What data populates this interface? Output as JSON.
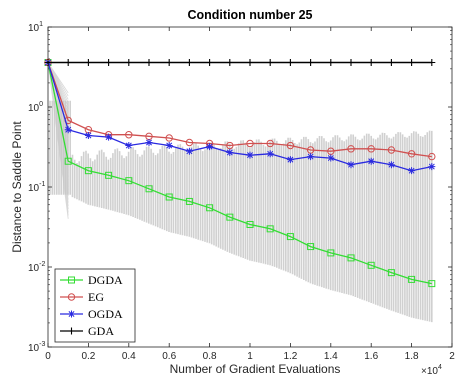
{
  "chart_data": {
    "type": "line",
    "title": "Condition number 25",
    "xlabel": "Number of Gradient Evaluations",
    "ylabel": "Distance to Saddle Point",
    "x_multiplier_label": "×10",
    "x_multiplier_exp": "4",
    "xlim": [
      0,
      2
    ],
    "ylim": [
      0.001,
      10
    ],
    "yscale": "log",
    "x_ticks": [
      0,
      0.2,
      0.4,
      0.6,
      0.8,
      1,
      1.2,
      1.4,
      1.6,
      1.8,
      2
    ],
    "x_tick_labels": [
      "0",
      "0.2",
      "0.4",
      "0.6",
      "0.8",
      "1",
      "1.2",
      "1.4",
      "1.6",
      "1.8",
      "2"
    ],
    "y_ticks": [
      0.001,
      0.01,
      0.1,
      1,
      10
    ],
    "y_tick_labels": [
      {
        "base": "10",
        "exp": "-3"
      },
      {
        "base": "10",
        "exp": "-2"
      },
      {
        "base": "10",
        "exp": "-1"
      },
      {
        "base": "10",
        "exp": "0"
      },
      {
        "base": "10",
        "exp": "1"
      }
    ],
    "grid": false,
    "legend_position": "bottom-left",
    "band_color": "#c8c8c8",
    "series": [
      {
        "name": "DGDA",
        "color": "#33dd33",
        "marker": "square",
        "x": [
          0,
          0.1,
          0.2,
          0.3,
          0.4,
          0.5,
          0.6,
          0.7,
          0.8,
          0.9,
          1.0,
          1.1,
          1.2,
          1.3,
          1.4,
          1.5,
          1.6,
          1.7,
          1.8,
          1.9
        ],
        "y": [
          3.6,
          0.21,
          0.16,
          0.14,
          0.12,
          0.095,
          0.075,
          0.066,
          0.055,
          0.042,
          0.034,
          0.03,
          0.024,
          0.018,
          0.015,
          0.013,
          0.0105,
          0.0085,
          0.007,
          0.0062
        ]
      },
      {
        "name": "EG",
        "color": "#d05050",
        "marker": "circle",
        "x": [
          0,
          0.1,
          0.2,
          0.3,
          0.4,
          0.5,
          0.6,
          0.7,
          0.8,
          0.9,
          1.0,
          1.1,
          1.2,
          1.3,
          1.4,
          1.5,
          1.6,
          1.7,
          1.8,
          1.9
        ],
        "y": [
          3.6,
          0.68,
          0.52,
          0.45,
          0.45,
          0.43,
          0.41,
          0.36,
          0.35,
          0.33,
          0.35,
          0.35,
          0.33,
          0.29,
          0.28,
          0.3,
          0.3,
          0.29,
          0.26,
          0.24
        ]
      },
      {
        "name": "OGDA",
        "color": "#2a2ae0",
        "marker": "star",
        "x": [
          0,
          0.1,
          0.2,
          0.3,
          0.4,
          0.5,
          0.6,
          0.7,
          0.8,
          0.9,
          1.0,
          1.1,
          1.2,
          1.3,
          1.4,
          1.5,
          1.6,
          1.7,
          1.8,
          1.9
        ],
        "y": [
          3.6,
          0.52,
          0.44,
          0.42,
          0.33,
          0.36,
          0.33,
          0.28,
          0.32,
          0.27,
          0.25,
          0.26,
          0.22,
          0.24,
          0.23,
          0.19,
          0.21,
          0.19,
          0.16,
          0.18
        ]
      },
      {
        "name": "GDA",
        "color": "#000000",
        "marker": "plus",
        "x": [
          0,
          0.1,
          0.2,
          0.3,
          0.4,
          0.5,
          0.6,
          0.7,
          0.8,
          0.9,
          1.0,
          1.1,
          1.2,
          1.3,
          1.4,
          1.5,
          1.6,
          1.7,
          1.8,
          1.9
        ],
        "y": [
          3.6,
          3.6,
          3.6,
          3.6,
          3.6,
          3.6,
          3.6,
          3.6,
          3.6,
          3.6,
          3.6,
          3.6,
          3.6,
          3.6,
          3.6,
          3.6,
          3.6,
          3.6,
          3.6,
          3.6
        ]
      }
    ]
  }
}
